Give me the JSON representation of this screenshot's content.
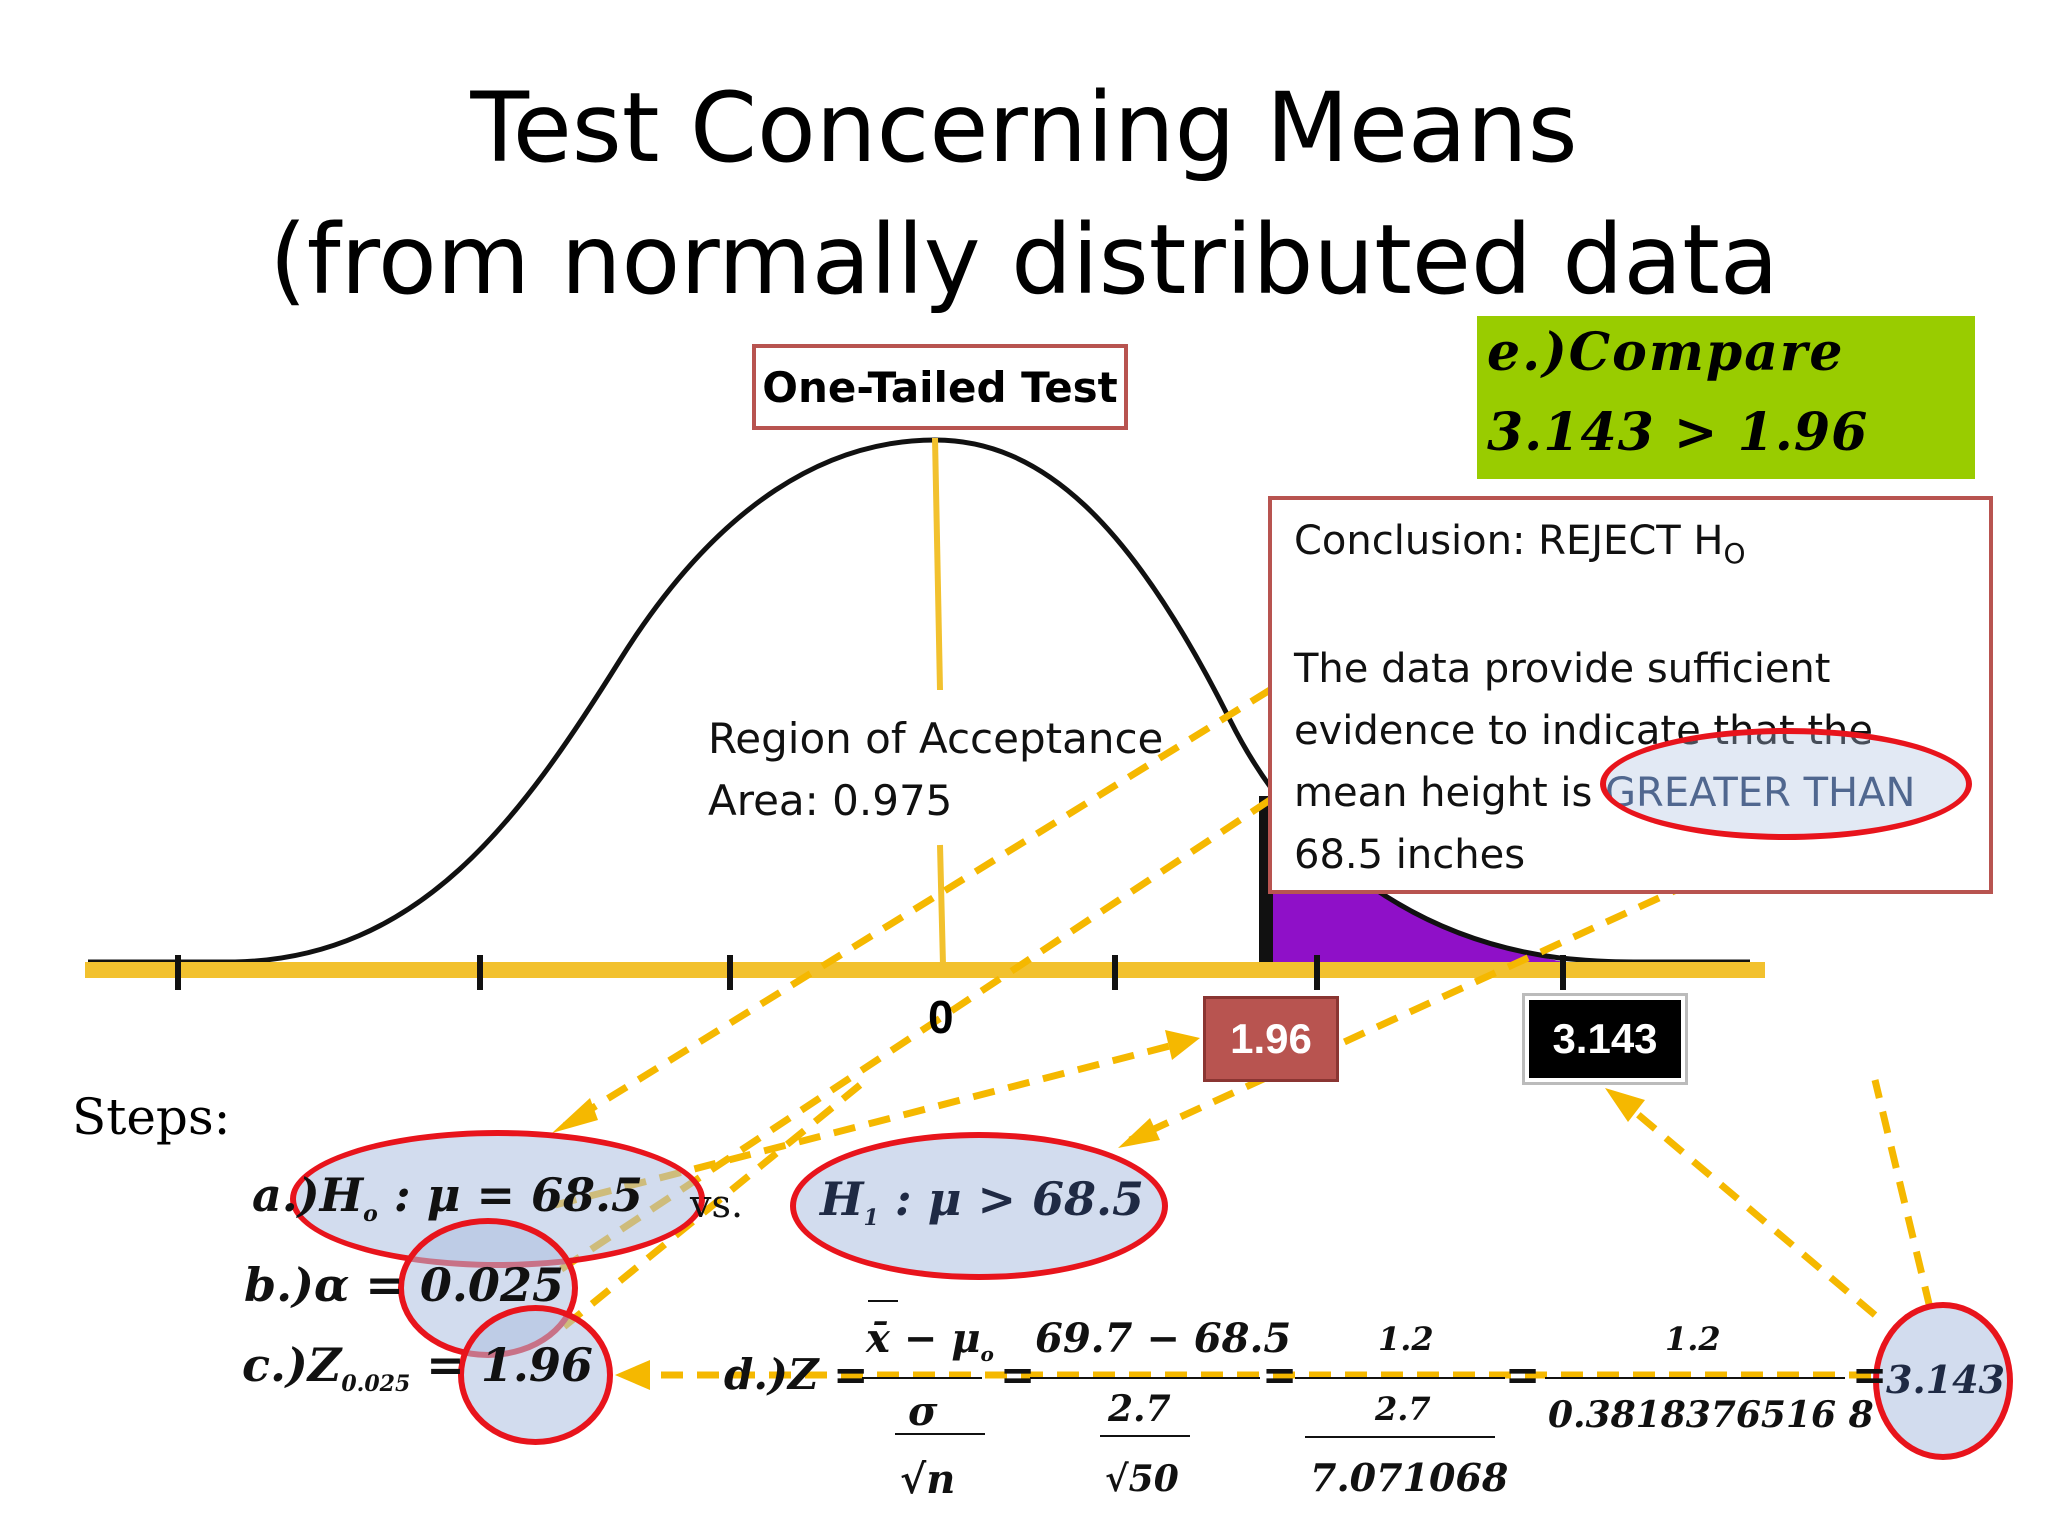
{
  "title": {
    "line1": "Test Concerning Means",
    "line2": "(from normally distributed data"
  },
  "diagram": {
    "test_label": "One-Tailed Test",
    "region_line1": "Region of Acceptance",
    "region_line2": "Area: 0.975",
    "axis_zero": "0",
    "critical_value": "1.96",
    "test_statistic": "3.143"
  },
  "compare": {
    "line1": "e.)Compare",
    "line2": "3.143 > 1.96"
  },
  "conclusion": {
    "heading": "Conclusion:  REJECT H",
    "heading_sub": "O",
    "body_before": "The data provide sufficient evidence to indicate that the mean height is ",
    "body_highlight": "GREATER THAN",
    "body_after": " 68.5 inches"
  },
  "steps": {
    "label": "Steps:",
    "a_prefix": "a.)",
    "h0": "H",
    "h0_sub": "o",
    "h0_rest": " : μ = 68.5",
    "vs": "vs.",
    "h1": "H",
    "h1_sub": "1",
    "h1_rest": " : μ > 68.5",
    "b": "b.)α = 0.025",
    "c_prefix": "c.)Z",
    "c_sub": "0.025",
    "c_rest": " = 1.96",
    "d_prefix": "d.)Z =",
    "f1_num": "x̄ − μ",
    "f1_num_sub": "o",
    "f1_den": "σ",
    "f1_den2": "√n",
    "f2_num": "69.7 − 68.5",
    "f2_den": "2.7",
    "f2_den2": "√50",
    "f3_num": "1.2",
    "f3_den": "2.7",
    "f3_den2": "7.071068",
    "f4_num": "1.2",
    "f4_den": "0.3818376516   8",
    "result": "3.143"
  },
  "colors": {
    "curve": "#111111",
    "axis": "#f2c12e",
    "rejection_fill": "#8f10c8",
    "arrow": "#f5b800",
    "circle": "#e8141c",
    "label_red": "#b85450",
    "compare_bg": "#99cc00"
  }
}
